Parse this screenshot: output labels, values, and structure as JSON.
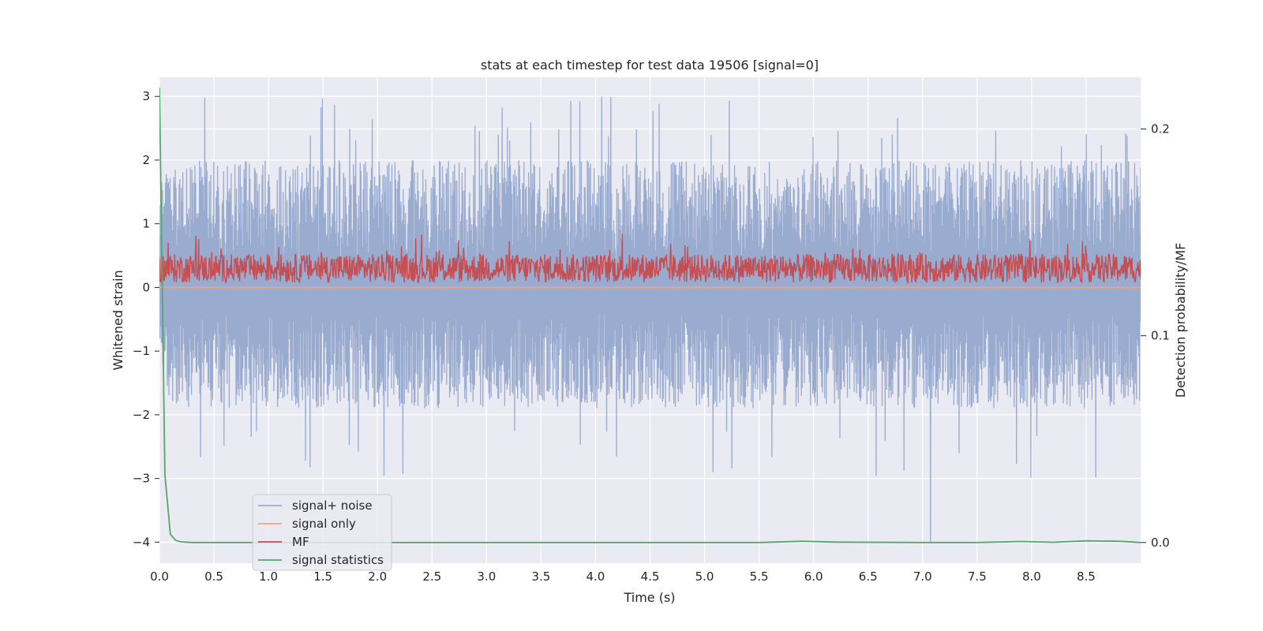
{
  "chart_data": {
    "type": "line",
    "title": "stats at each timestep for test data 19506 [signal=0]",
    "xlabel": "Time (s)",
    "ylabel": "Whitened strain",
    "y2label": "Detection probability/MF",
    "xlim": [
      0.0,
      9.0
    ],
    "ylim": [
      -4.33,
      3.3
    ],
    "y2lim": [
      -0.01,
      0.225
    ],
    "x_ticks": [
      "0.0",
      "0.5",
      "1.0",
      "1.5",
      "2.0",
      "2.5",
      "3.0",
      "3.5",
      "4.0",
      "4.5",
      "5.0",
      "5.5",
      "6.0",
      "6.5",
      "7.0",
      "7.5",
      "8.0",
      "8.5"
    ],
    "y_ticks": [
      "3",
      "2",
      "1",
      "0",
      "−1",
      "−2",
      "−3",
      "−4"
    ],
    "y2_ticks": [
      "0.2",
      "0.1",
      "0.0"
    ],
    "grid": true,
    "legend_position": "lower-left",
    "legend": [
      "signal+ noise",
      "signal only",
      "MF",
      "signal statistics"
    ],
    "series": [
      {
        "name": "signal+ noise",
        "axis": "left",
        "color": "#9aabd0",
        "description": "dense whitened noise, approx uniform between -2 and 2 with occasional spikes",
        "x_range": [
          0.0,
          9.0
        ],
        "typical_range": [
          -2.0,
          2.2
        ],
        "extremes": {
          "max": 2.97,
          "min": -4.0
        }
      },
      {
        "name": "signal only",
        "axis": "left",
        "color": "#e8a88a",
        "x": [
          0.0,
          9.0
        ],
        "values": [
          0.0,
          0.0
        ]
      },
      {
        "name": "MF",
        "axis": "left",
        "color": "#c44e52",
        "x_range": [
          0.0,
          9.0
        ],
        "typical_range": [
          0.0,
          0.85
        ],
        "mean": 0.3
      },
      {
        "name": "signal statistics",
        "axis": "right",
        "color": "#55a868",
        "x": [
          0.0,
          0.05,
          0.1,
          0.15,
          0.2,
          0.3,
          0.5,
          1.0,
          2.0,
          3.0,
          4.0,
          5.0,
          5.5,
          5.9,
          6.2,
          7.0,
          7.5,
          7.9,
          8.2,
          8.5,
          8.8,
          9.0
        ],
        "values": [
          0.22,
          0.033,
          0.004,
          0.001,
          0.0003,
          0.0,
          0.0,
          0.0,
          0.0,
          0.0,
          0.0,
          0.0,
          0.0,
          0.0006,
          0.0002,
          0.0,
          0.0,
          0.0005,
          0.0001,
          0.0008,
          0.0006,
          0.0
        ]
      }
    ]
  }
}
